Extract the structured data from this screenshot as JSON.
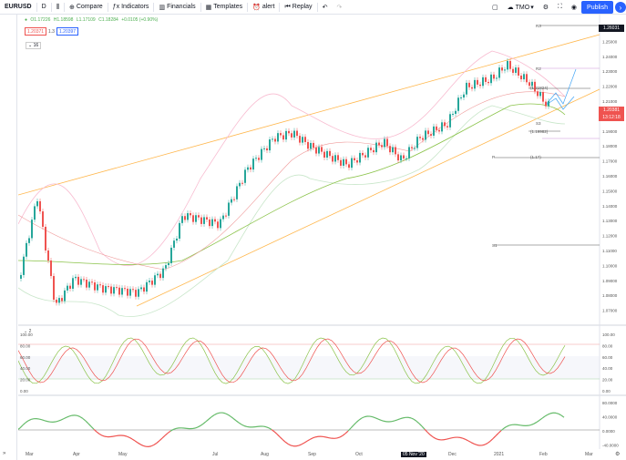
{
  "toolbar": {
    "symbol": "EURUSD",
    "interval": "D",
    "compare": "Compare",
    "indicators": "Indicators",
    "financials": "Financials",
    "templates": "Templates",
    "alert": "alert",
    "replay": "Replay",
    "layout": "TMO",
    "publish": "Publish"
  },
  "legend": {
    "o": "O1.17226",
    "h": "H1.18598",
    "l": "L1.17109",
    "c": "C1.18284",
    "chg": "+0.0105 (+0.90%)",
    "box_left": "1.20371",
    "box_sep": "1.3",
    "box_right": "1.20397",
    "collapse": "16"
  },
  "price_axis": [
    "1.26000",
    "1.25000",
    "1.24000",
    "1.23000",
    "1.22000",
    "1.21000",
    "1.20000",
    "1.19000",
    "1.18000",
    "1.17000",
    "1.16000",
    "1.15000",
    "1.14000",
    "1.13000",
    "1.12000",
    "1.11000",
    "1.10000",
    "1.09000",
    "1.08000",
    "1.07000"
  ],
  "price_tags": {
    "current": "1.20381",
    "countdown": "13:12:18",
    "top": "1.26031"
  },
  "chart_labels": {
    "r3": "R3",
    "r2": "R2",
    "p": "P",
    "s1": "S1",
    "s3": "S3",
    "lvl_1_21824": "(1.21824)",
    "lvl_1_19982": "(1.19982)",
    "lvl_1_17": "(1.1?)",
    "lvl_1_5": "1.5"
  },
  "osc1": {
    "collapse": "2",
    "axis_left": [
      "100.00",
      "80.00",
      "60.00",
      "40.00",
      "20.00",
      "0.00"
    ],
    "axis_right": [
      "100.00",
      "80.00",
      "60.00",
      "40.00",
      "20.00",
      "0.00"
    ]
  },
  "osc2": {
    "axis_right": [
      "80.0000",
      "40.0000",
      "0.0000",
      "-40.0000"
    ]
  },
  "time_axis": {
    "labels": [
      "Mar",
      "Apr",
      "May",
      "Jul",
      "Aug",
      "Sep",
      "Oct",
      "Dec",
      "2021",
      "Feb",
      "Mar"
    ],
    "highlight": "05 Nov '20"
  },
  "colors": {
    "accent": "#2962ff",
    "up": "#26a69a",
    "down": "#ef5350",
    "price_red": "#ef5350",
    "bb_pink": "#f8bbd0",
    "green_ma": "#8bc34a",
    "orange_channel": "#ffb74d"
  }
}
